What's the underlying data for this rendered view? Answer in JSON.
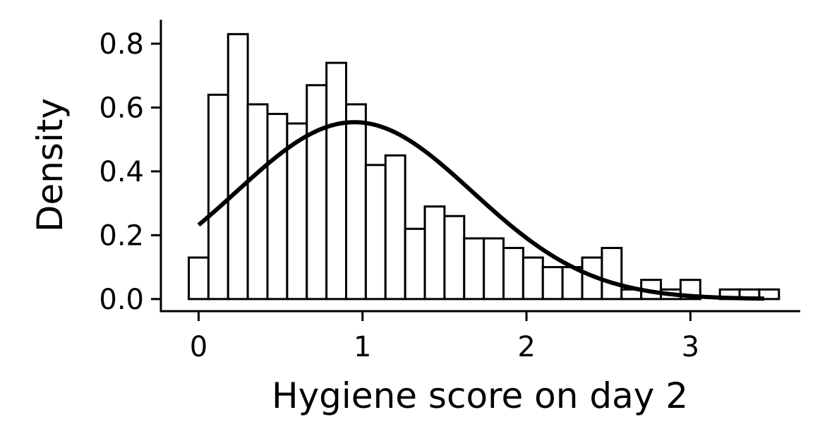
{
  "chart_data": {
    "type": "bar",
    "xlabel": "Hygiene score on day 2",
    "ylabel": "Density",
    "xlim": [
      -0.23,
      3.67
    ],
    "ylim": [
      -0.038,
      0.875
    ],
    "xticks": [
      0,
      1,
      2,
      3
    ],
    "xtick_labels": [
      "0",
      "1",
      "2",
      "3"
    ],
    "yticks": [
      0.0,
      0.2,
      0.4,
      0.6,
      0.8
    ],
    "ytick_labels": [
      "0.0",
      "0.2",
      "0.4",
      "0.6",
      "0.8"
    ],
    "grid": false,
    "legend": false,
    "bar_fill": "#ffffff",
    "bar_edge": "#000000",
    "bin_edges": [
      -0.06,
      0.06,
      0.18,
      0.3,
      0.42,
      0.54,
      0.66,
      0.78,
      0.9,
      1.02,
      1.14,
      1.26,
      1.38,
      1.5,
      1.62,
      1.74,
      1.86,
      1.98,
      2.1,
      2.22,
      2.34,
      2.46,
      2.58,
      2.7,
      2.82,
      2.94,
      3.06,
      3.18,
      3.3,
      3.42,
      3.54
    ],
    "values": [
      0.13,
      0.64,
      0.83,
      0.61,
      0.58,
      0.55,
      0.67,
      0.74,
      0.61,
      0.42,
      0.45,
      0.22,
      0.29,
      0.26,
      0.19,
      0.19,
      0.16,
      0.13,
      0.1,
      0.1,
      0.13,
      0.16,
      0.03,
      0.06,
      0.03,
      0.06,
      0.0,
      0.03,
      0.03,
      0.03
    ],
    "curve": {
      "type": "normal_density",
      "mean": 0.95,
      "sd": 0.72,
      "x_range": [
        0.0,
        3.45
      ],
      "color": "#000000"
    }
  }
}
